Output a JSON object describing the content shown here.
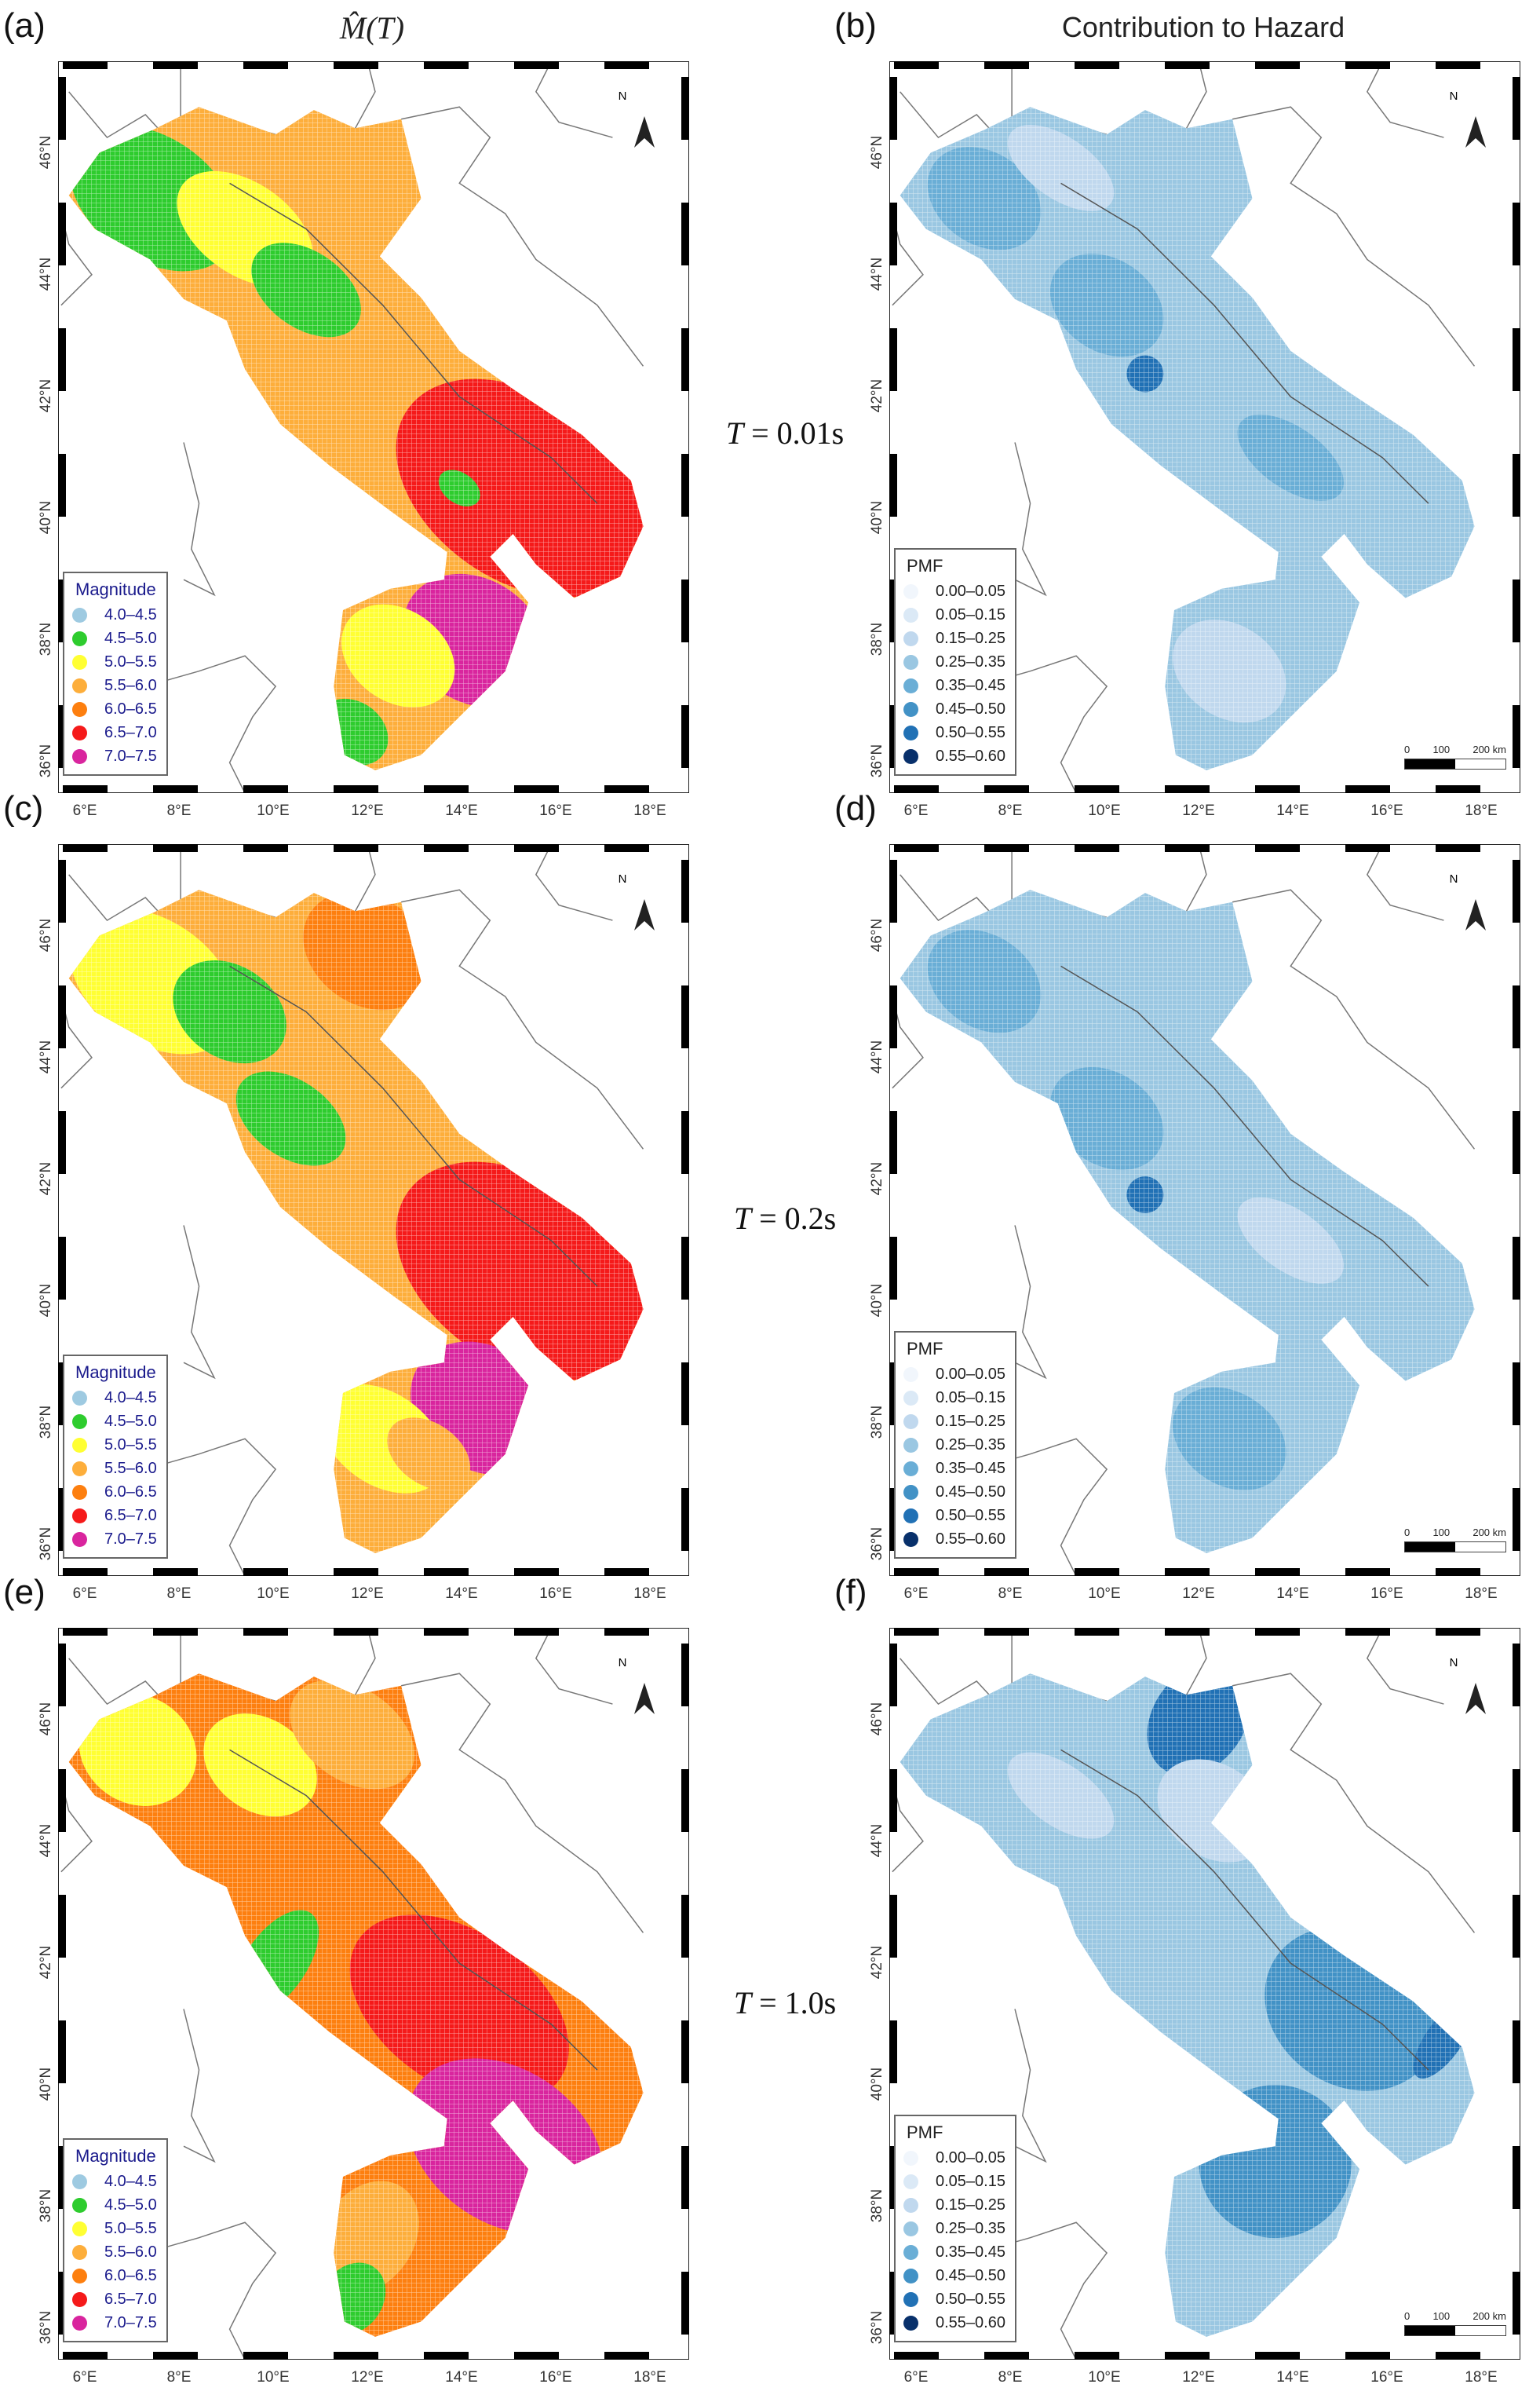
{
  "columns": {
    "left_title": "M̂(T)",
    "right_title": "Contribution to Hazard"
  },
  "periods": [
    {
      "prefix": "T",
      "value": " = 0.01s"
    },
    {
      "prefix": "T",
      "value": " = 0.2s"
    },
    {
      "prefix": "T",
      "value": " = 1.0s"
    }
  ],
  "panels": [
    {
      "label": "(a)",
      "type": "magnitude"
    },
    {
      "label": "(b)",
      "type": "pmf"
    },
    {
      "label": "(c)",
      "type": "magnitude"
    },
    {
      "label": "(d)",
      "type": "pmf"
    },
    {
      "label": "(e)",
      "type": "magnitude"
    },
    {
      "label": "(f)",
      "type": "pmf"
    }
  ],
  "magnitude_legend": {
    "title": "Magnitude",
    "items": [
      {
        "label": "4.0–4.5",
        "color": "#9ecae1"
      },
      {
        "label": "4.5–5.0",
        "color": "#2ecc2e"
      },
      {
        "label": "5.0–5.5",
        "color": "#ffff33"
      },
      {
        "label": "5.5–6.0",
        "color": "#fdae3b"
      },
      {
        "label": "6.0–6.5",
        "color": "#fd7f0f"
      },
      {
        "label": "6.5–7.0",
        "color": "#f51a1a"
      },
      {
        "label": "7.0–7.5",
        "color": "#d9259e"
      }
    ]
  },
  "pmf_legend": {
    "title": "PMF",
    "items": [
      {
        "label": "0.00–0.05",
        "color": "#f1f6fc"
      },
      {
        "label": "0.05–0.15",
        "color": "#dbe9f6"
      },
      {
        "label": "0.15–0.25",
        "color": "#c0d8ee"
      },
      {
        "label": "0.25–0.35",
        "color": "#9ac7e2"
      },
      {
        "label": "0.35–0.45",
        "color": "#6aaed6"
      },
      {
        "label": "0.45–0.50",
        "color": "#4292c6"
      },
      {
        "label": "0.50–0.55",
        "color": "#2171b5"
      },
      {
        "label": "0.55–0.60",
        "color": "#08306b"
      }
    ]
  },
  "axes": {
    "x_ticks": [
      "6°E",
      "8°E",
      "10°E",
      "12°E",
      "14°E",
      "16°E",
      "18°E"
    ],
    "y_ticks": [
      "36°N",
      "38°N",
      "40°N",
      "42°N",
      "44°N",
      "46°N"
    ]
  },
  "scale_bar": {
    "labels": [
      "0",
      "100",
      "200 km"
    ]
  },
  "north_label": "N"
}
